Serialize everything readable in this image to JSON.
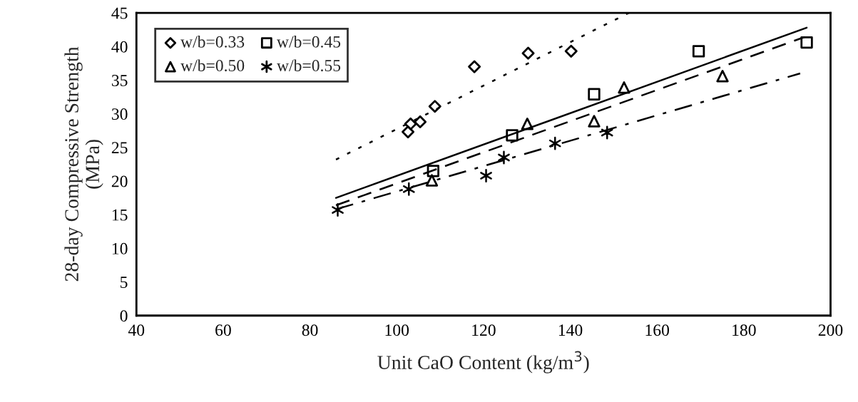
{
  "chart_data": {
    "type": "scatter",
    "xlabel": "Unit CaO Content (kg/m$^{3}$)",
    "ylabel": "28-day Compressive Strength\n(MPa)",
    "xlim": [
      40,
      200
    ],
    "xticks": [
      40,
      60,
      80,
      100,
      120,
      140,
      160,
      180,
      200
    ],
    "ylim": [
      0,
      45
    ],
    "yticks": [
      0,
      5,
      10,
      15,
      20,
      25,
      30,
      35,
      40,
      45
    ],
    "grid": false,
    "legend": "top left",
    "series": [
      {
        "name": "w/b=0.33",
        "marker": "diamond",
        "color": "#000000",
        "x": [
          102.6,
          103.2,
          105.4,
          108.8,
          117.9,
          130.3,
          140.2
        ],
        "values": [
          27.3,
          28.5,
          28.8,
          31.1,
          37.0,
          39.0,
          39.3
        ]
      },
      {
        "name": "w/b=0.45",
        "marker": "square",
        "color": "#000000",
        "x": [
          108.4,
          126.6,
          145.5,
          169.6,
          194.5
        ],
        "values": [
          21.5,
          26.8,
          32.9,
          39.3,
          40.6
        ]
      },
      {
        "name": "w/b=0.50",
        "marker": "triangle",
        "color": "#000000",
        "x": [
          108.1,
          130.1,
          145.5,
          152.4,
          175.1
        ],
        "values": [
          20.1,
          28.5,
          28.9,
          33.9,
          35.6
        ]
      },
      {
        "name": "w/b=0.55",
        "marker": "cross",
        "color": "#000000",
        "x": [
          86.4,
          102.8,
          120.6,
          124.7,
          136.5,
          148.5
        ],
        "values": [
          15.7,
          18.8,
          20.8,
          23.5,
          25.6,
          27.2
        ]
      },
      {
        "type": "line",
        "line_style": "dotted",
        "color": "#000000",
        "x": [
          86,
          153.5
        ],
        "values": [
          23.2,
          45
        ]
      },
      {
        "type": "line",
        "line_style": "solid",
        "color": "#000000",
        "x": [
          86,
          194.5
        ],
        "values": [
          17.5,
          42.8
        ]
      },
      {
        "type": "line",
        "line_style": "dashed",
        "color": "#000000",
        "x": [
          86,
          194
        ],
        "values": [
          16.4,
          41.4
        ]
      },
      {
        "type": "line",
        "line_style": "dashdot",
        "color": "#000000",
        "x": [
          86,
          193
        ],
        "values": [
          15.8,
          36.0
        ]
      }
    ]
  }
}
